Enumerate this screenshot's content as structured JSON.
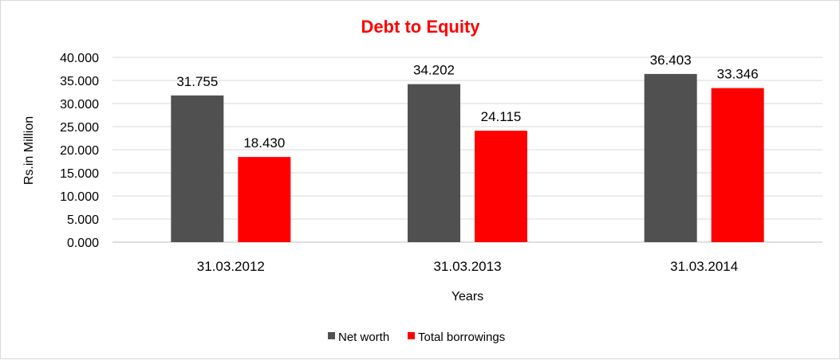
{
  "chart_data": {
    "type": "bar",
    "title": "Debt to Equity",
    "title_color": "#ff0000",
    "xlabel": "Years",
    "ylabel": "Rs.in Million",
    "categories": [
      "31.03.2012",
      "31.03.2013",
      "31.03.2014"
    ],
    "series": [
      {
        "name": "Net worth",
        "color": "#505050",
        "values": [
          31.755,
          34.202,
          36.403
        ],
        "labels": [
          "31.755",
          "34.202",
          "36.403"
        ]
      },
      {
        "name": "Total borrowings",
        "color": "#ff0000",
        "values": [
          18.43,
          24.115,
          33.346
        ],
        "labels": [
          "18.430",
          "24.115",
          "33.346"
        ]
      }
    ],
    "ylim": [
      0,
      40
    ],
    "yticks": [
      0,
      5,
      10,
      15,
      20,
      25,
      30,
      35,
      40
    ],
    "ytick_labels": [
      "0.000",
      "5.000",
      "10.000",
      "15.000",
      "20.000",
      "25.000",
      "30.000",
      "35.000",
      "40.000"
    ],
    "grid": true,
    "legend_position": "bottom"
  }
}
